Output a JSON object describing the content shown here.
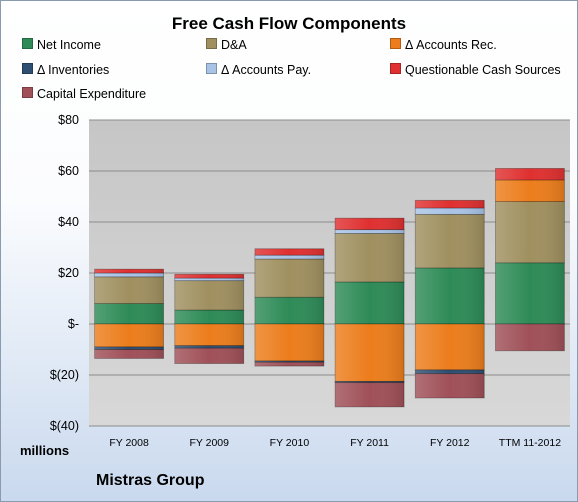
{
  "chart_data": {
    "type": "bar",
    "stacked": true,
    "title": "Free Cash Flow Components",
    "units_label": "millions",
    "company": "Mistras Group",
    "categories": [
      "FY 2008",
      "FY 2009",
      "FY 2010",
      "FY 2011",
      "FY 2012",
      "TTM 11-2012"
    ],
    "y_ticks": [
      "$80",
      "$60",
      "$40",
      "$20",
      "$-",
      "$(20)",
      "$(40)"
    ],
    "ylim": [
      -40,
      80
    ],
    "grid": true,
    "legend_position": "top",
    "series": [
      {
        "name": "Net Income",
        "color": "#2e8b57",
        "values": [
          8,
          5.5,
          10.5,
          16.5,
          22,
          24
        ]
      },
      {
        "name": "D&A",
        "color": "#a09060",
        "values": [
          10.5,
          11.5,
          15,
          19,
          21,
          24
        ]
      },
      {
        "name": "Δ Accounts Rec.",
        "color": "#ec7d1c",
        "values": [
          -9,
          -8.5,
          -14.5,
          -22.5,
          -18,
          8.5
        ]
      },
      {
        "name": "Δ Inventories",
        "color": "#2f4f72",
        "values": [
          -1,
          -1,
          -0.5,
          -0.5,
          -1.5,
          0
        ]
      },
      {
        "name": "Δ Accounts Pay.",
        "color": "#a9c3e6",
        "values": [
          1.5,
          1,
          1.5,
          1.5,
          2.5,
          0
        ]
      },
      {
        "name": "Questionable Cash Sources",
        "color": "#e03030",
        "values": [
          1.5,
          1.5,
          2.5,
          4.5,
          3,
          4.5
        ]
      },
      {
        "name": "Capital Expenditure",
        "color": "#a05058",
        "values": [
          -3.5,
          -6,
          -1.5,
          -9.5,
          -9.5,
          -10.5
        ]
      }
    ]
  }
}
